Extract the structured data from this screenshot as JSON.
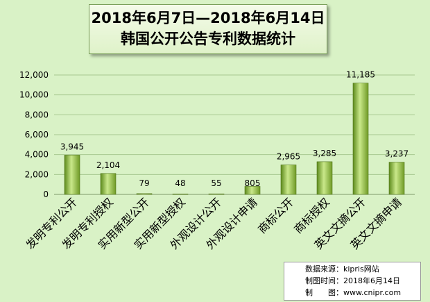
{
  "title": {
    "line1": "2018年6月7日—2018年6月14日",
    "line2": "韩国公开公告专利数据统计"
  },
  "footer": {
    "source": "数据来源：kipris网站",
    "time": "制图时间：2018年6月14日",
    "maker": "制　　图：www.cnipr.com"
  },
  "colors": {
    "background": "#d9f2c6",
    "bar_light": "#c9e88a",
    "bar_dark": "#6f9a26",
    "grid": "#a8c890"
  },
  "chart_data": {
    "type": "bar",
    "categories": [
      "发明专利公开",
      "发明专利授权",
      "实用新型公开",
      "实用新型授权",
      "外观设计公开",
      "外观设计申请",
      "商标公开",
      "商标授权",
      "英文文摘公开",
      "英文文摘申请"
    ],
    "values": [
      3945,
      2104,
      79,
      48,
      55,
      805,
      2965,
      3285,
      11185,
      3237
    ],
    "data_labels": [
      "3,945",
      "2,104",
      "79",
      "48",
      "55",
      "805",
      "2,965",
      "3,285",
      "11,185",
      "3,237"
    ],
    "y_ticks": [
      "0",
      "2,000",
      "4,000",
      "6,000",
      "8,000",
      "10,000",
      "12,000"
    ],
    "ylim": [
      0,
      12000
    ],
    "grid": true,
    "legend": "none"
  }
}
